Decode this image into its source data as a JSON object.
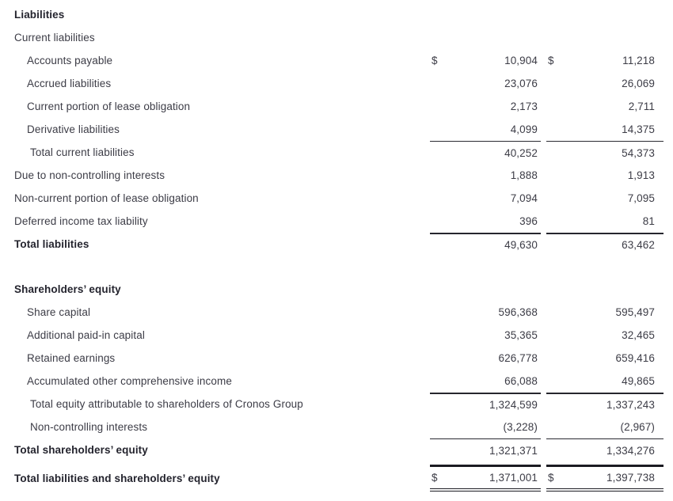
{
  "document": {
    "type": "balance-sheet-excerpt",
    "company_reference": "Cronos Group",
    "background_color": "#ffffff",
    "text_color": "#3c3c46",
    "heading_color": "#24242e",
    "rule_color": "#26262e",
    "currency_symbol": "$"
  },
  "rows": [
    {
      "label": "Liabilities"
    },
    {
      "label": "Current liabilities"
    },
    {
      "label": "Accounts payable",
      "d1": "$",
      "v1": "10,904",
      "d2": "$",
      "v2": "11,218"
    },
    {
      "label": "Accrued liabilities",
      "v1": "23,076",
      "v2": "26,069"
    },
    {
      "label": "Current portion of lease obligation",
      "v1": "2,173",
      "v2": "2,711"
    },
    {
      "label": "Derivative liabilities",
      "v1": "4,099",
      "v2": "14,375"
    },
    {
      "label": "Total current liabilities",
      "v1": "40,252",
      "v2": "54,373"
    },
    {
      "label": "Due to non-controlling interests",
      "v1": "1,888",
      "v2": "1,913"
    },
    {
      "label": "Non-current portion of lease obligation",
      "v1": "7,094",
      "v2": "7,095"
    },
    {
      "label": "Deferred income tax liability",
      "v1": "396",
      "v2": "81"
    },
    {
      "label": "Total liabilities",
      "v1": "49,630",
      "v2": "63,462"
    },
    {
      "label": "Shareholders’ equity"
    },
    {
      "label": "Share capital",
      "v1": "596,368",
      "v2": "595,497"
    },
    {
      "label": "Additional paid-in capital",
      "v1": "35,365",
      "v2": "32,465"
    },
    {
      "label": "Retained earnings",
      "v1": "626,778",
      "v2": "659,416"
    },
    {
      "label": "Accumulated other comprehensive income",
      "v1": "66,088",
      "v2": "49,865"
    },
    {
      "label": "Total equity attributable to shareholders of Cronos Group",
      "v1": "1,324,599",
      "v2": "1,337,243"
    },
    {
      "label": "Non-controlling interests",
      "v1": "(3,228)",
      "v2": "(2,967)"
    },
    {
      "label": "Total shareholders’ equity",
      "v1": "1,321,371",
      "v2": "1,334,276"
    },
    {
      "label": "Total liabilities and shareholders’ equity",
      "d1": "$",
      "v1": "1,371,001",
      "d2": "$",
      "v2": "1,397,738"
    }
  ]
}
